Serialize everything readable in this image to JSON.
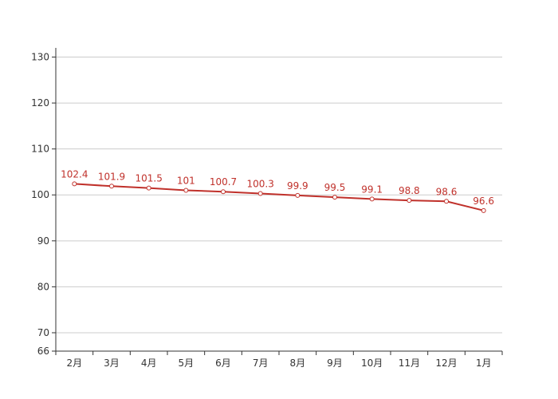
{
  "chart_data": {
    "type": "line",
    "title": "",
    "xlabel": "",
    "ylabel": "",
    "categories": [
      "2月",
      "3月",
      "4月",
      "5月",
      "6月",
      "7月",
      "8月",
      "9月",
      "10月",
      "11月",
      "12月",
      "1月"
    ],
    "series": [
      {
        "values": [
          102.4,
          101.9,
          101.5,
          101,
          100.7,
          100.3,
          99.9,
          99.5,
          99.1,
          98.8,
          98.6,
          96.6
        ]
      }
    ],
    "ylim": [
      66,
      132
    ],
    "yticks": [
      66,
      70,
      80,
      90,
      100,
      110,
      120,
      130
    ],
    "grid": true,
    "legend": "none",
    "line_color": "#c0312b",
    "label_color": "#c0312b",
    "grid_color": "#cccccc",
    "axis_color": "#333333"
  }
}
